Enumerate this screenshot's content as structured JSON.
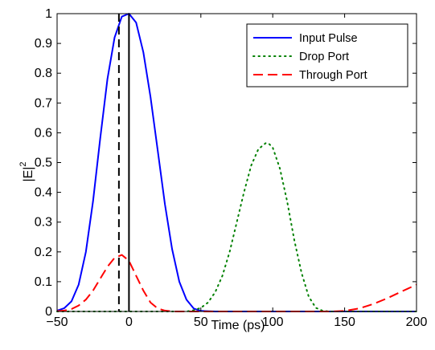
{
  "chart_data": {
    "type": "line",
    "title": "",
    "xlabel": "Time (ps)",
    "ylabel_main": "|E|",
    "ylabel_sup": "2",
    "xlim": [
      -50,
      200
    ],
    "ylim": [
      0,
      1
    ],
    "xticks": [
      -50,
      0,
      50,
      100,
      150,
      200
    ],
    "xtick_labels": [
      "−50",
      "0",
      "50",
      "100",
      "150",
      "200"
    ],
    "yticks": [
      0,
      0.1,
      0.2,
      0.3,
      0.4,
      0.5,
      0.6,
      0.7,
      0.8,
      0.9,
      1
    ],
    "ytick_labels": [
      "0",
      "0.1",
      "0.2",
      "0.3",
      "0.4",
      "0.5",
      "0.6",
      "0.7",
      "0.8",
      "0.9",
      "1"
    ],
    "grid": false,
    "legend_position": "top-right",
    "series": [
      {
        "name": "Input Pulse",
        "color": "#0000ff",
        "dash": "solid",
        "x": [
          -50,
          -45,
          -40,
          -35,
          -30,
          -25,
          -20,
          -15,
          -10,
          -5,
          0,
          5,
          10,
          15,
          20,
          25,
          30,
          35,
          40,
          45,
          50,
          60,
          80,
          100,
          120,
          140,
          160,
          180,
          200
        ],
        "y": [
          0.003,
          0.011,
          0.034,
          0.09,
          0.2,
          0.37,
          0.58,
          0.78,
          0.92,
          0.99,
          1.0,
          0.97,
          0.87,
          0.72,
          0.54,
          0.36,
          0.21,
          0.1,
          0.04,
          0.01,
          0.002,
          0,
          0,
          0,
          0,
          0,
          0,
          0,
          0
        ]
      },
      {
        "name": "Drop Port",
        "color": "#008000",
        "dash": "dotted",
        "x": [
          -50,
          0,
          40,
          45,
          50,
          55,
          60,
          65,
          70,
          75,
          80,
          85,
          90,
          95,
          97,
          100,
          105,
          110,
          115,
          120,
          125,
          130,
          135,
          140,
          150,
          160,
          180,
          200
        ],
        "y": [
          0,
          0,
          0,
          0.004,
          0.012,
          0.03,
          0.065,
          0.12,
          0.2,
          0.3,
          0.4,
          0.49,
          0.545,
          0.565,
          0.565,
          0.55,
          0.48,
          0.37,
          0.24,
          0.13,
          0.05,
          0.012,
          0.002,
          0,
          0,
          0,
          0,
          0
        ]
      },
      {
        "name": "Through Port",
        "color": "#ff0000",
        "dash": "dashed",
        "x": [
          -50,
          -45,
          -40,
          -35,
          -30,
          -25,
          -20,
          -15,
          -10,
          -5,
          0,
          5,
          10,
          15,
          20,
          25,
          30,
          40,
          60,
          80,
          100,
          120,
          140,
          150,
          160,
          170,
          180,
          190,
          200
        ],
        "y": [
          0.001,
          0.003,
          0.008,
          0.02,
          0.04,
          0.07,
          0.11,
          0.15,
          0.18,
          0.19,
          0.17,
          0.12,
          0.07,
          0.03,
          0.01,
          0.003,
          0,
          0,
          0,
          0,
          0,
          0,
          0,
          0.002,
          0.01,
          0.025,
          0.045,
          0.068,
          0.09
        ]
      }
    ],
    "vertical_lines": [
      {
        "x": -7,
        "style": "dashed",
        "color": "#000000"
      },
      {
        "x": 0,
        "style": "solid",
        "color": "#000000"
      }
    ]
  }
}
